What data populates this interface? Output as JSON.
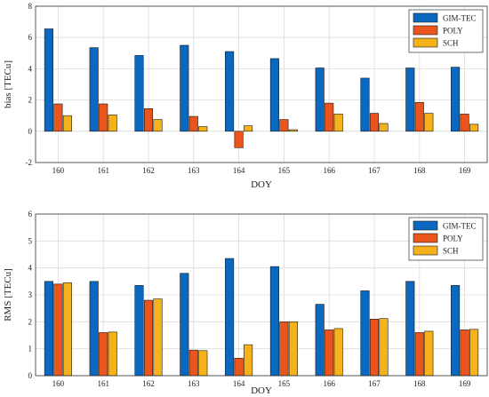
{
  "colors": {
    "GIM-TEC": "#0a68c0",
    "POLY": "#e9551c",
    "SCH": "#f6b21b"
  },
  "chart_data": [
    {
      "type": "bar",
      "categories": [
        "160",
        "161",
        "162",
        "163",
        "164",
        "165",
        "166",
        "167",
        "168",
        "169"
      ],
      "series": [
        {
          "name": "GIM-TEC",
          "values": [
            6.55,
            5.35,
            4.85,
            5.5,
            5.1,
            4.65,
            4.05,
            3.4,
            4.05,
            4.1
          ]
        },
        {
          "name": "POLY",
          "values": [
            1.75,
            1.75,
            1.45,
            0.95,
            -1.05,
            0.75,
            1.8,
            1.15,
            1.85,
            1.1
          ]
        },
        {
          "name": "SCH",
          "values": [
            1.0,
            1.05,
            0.75,
            0.3,
            0.35,
            0.1,
            1.1,
            0.5,
            1.15,
            0.45
          ]
        }
      ],
      "xlabel": "DOY",
      "ylabel": "bias [TECu]",
      "ylim": [
        -2,
        8
      ],
      "yticks": [
        -2,
        0,
        2,
        4,
        6,
        8
      ],
      "grid": true,
      "legend": "top-right"
    },
    {
      "type": "bar",
      "categories": [
        "160",
        "161",
        "162",
        "163",
        "164",
        "165",
        "166",
        "167",
        "168",
        "169"
      ],
      "series": [
        {
          "name": "GIM-TEC",
          "values": [
            3.5,
            3.5,
            3.35,
            3.8,
            4.35,
            4.05,
            2.65,
            3.15,
            3.5,
            3.35
          ]
        },
        {
          "name": "POLY",
          "values": [
            3.4,
            1.6,
            2.8,
            0.95,
            0.65,
            2.0,
            1.7,
            2.1,
            1.6,
            1.7
          ]
        },
        {
          "name": "SCH",
          "values": [
            3.45,
            1.62,
            2.85,
            0.93,
            1.15,
            2.0,
            1.75,
            2.12,
            1.65,
            1.72
          ]
        }
      ],
      "xlabel": "DOY",
      "ylabel": "RMS [TECu]",
      "ylim": [
        0,
        6
      ],
      "yticks": [
        0,
        1,
        2,
        3,
        4,
        5,
        6
      ],
      "grid": true,
      "legend": "top-right"
    }
  ]
}
